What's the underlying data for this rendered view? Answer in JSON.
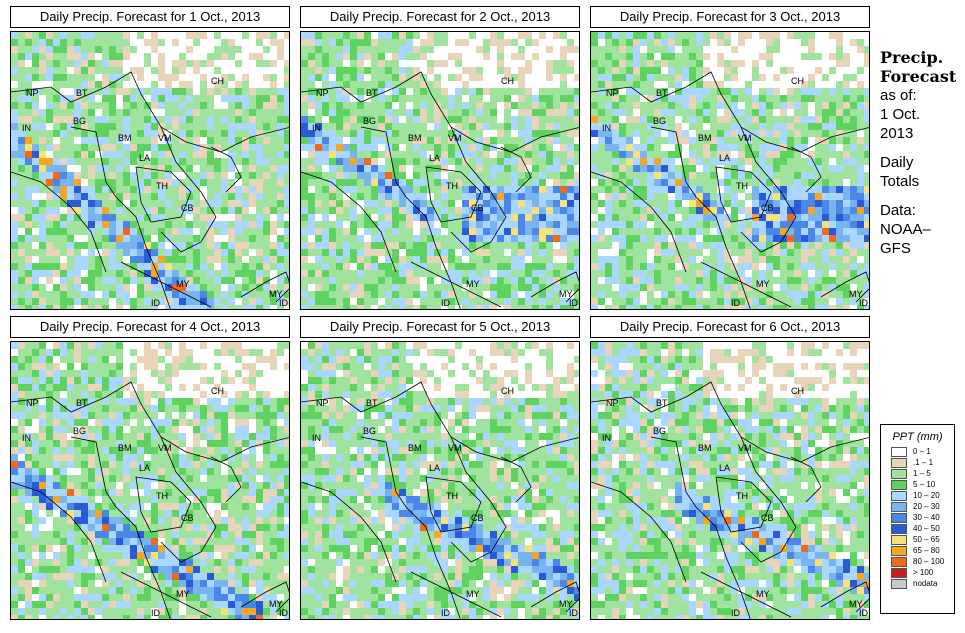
{
  "panels": [
    {
      "title": "Daily Precip. Forecast for  1 Oct., 2013",
      "seed": 11,
      "heavy": "sw"
    },
    {
      "title": "Daily Precip. Forecast for  2 Oct., 2013",
      "seed": 23,
      "heavy": "east"
    },
    {
      "title": "Daily Precip. Forecast for  3 Oct., 2013",
      "seed": 37,
      "heavy": "east"
    },
    {
      "title": "Daily Precip. Forecast for  4 Oct., 2013",
      "seed": 41,
      "heavy": "south"
    },
    {
      "title": "Daily Precip. Forecast for  5 Oct., 2013",
      "seed": 53,
      "heavy": "band"
    },
    {
      "title": "Daily Precip. Forecast for  6 Oct., 2013",
      "seed": 67,
      "heavy": "band"
    }
  ],
  "country_codes": [
    "NP",
    "BT",
    "IN",
    "BG",
    "BM",
    "CH",
    "VM",
    "LA",
    "TH",
    "CB",
    "MY",
    "ID",
    "MY",
    "ID"
  ],
  "sidebar": {
    "line1": "Precip.",
    "line2": "Forecast",
    "line3": "as of:",
    "line4": "1 Oct.",
    "line5": "2013",
    "line6": "Daily",
    "line7": "Totals",
    "line8": "Data:",
    "line9": "NOAA–",
    "line10": "GFS"
  },
  "legend": {
    "title": "PPT (mm)",
    "items": [
      {
        "label": "0 – 1",
        "color": "#ffffff"
      },
      {
        "label": ".1 – 1",
        "color": "#e8d4b8"
      },
      {
        "label": "1 – 5",
        "color": "#9fe39f"
      },
      {
        "label": "5 – 10",
        "color": "#5fd35f"
      },
      {
        "label": "10 – 20",
        "color": "#a9d7ff"
      },
      {
        "label": "20 – 30",
        "color": "#78b4f0"
      },
      {
        "label": "30 – 40",
        "color": "#4b87e6"
      },
      {
        "label": "40 – 50",
        "color": "#2a5bd7"
      },
      {
        "label": "50 – 65",
        "color": "#f5e37a"
      },
      {
        "label": "65 – 80",
        "color": "#f5a623"
      },
      {
        "label": "80 – 100",
        "color": "#f06a1e"
      },
      {
        "label": "> 100",
        "color": "#c81e1e"
      },
      {
        "label": "nodata",
        "color": "#c8c8c8"
      }
    ]
  }
}
